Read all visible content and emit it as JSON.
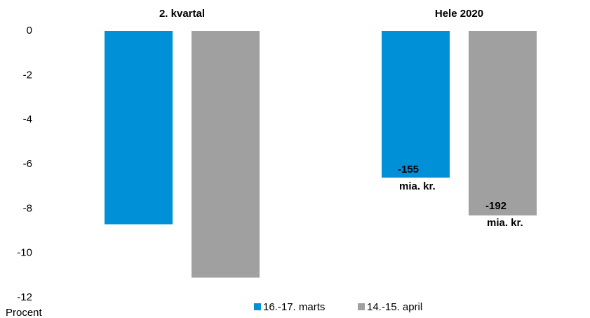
{
  "chart_data": {
    "type": "bar",
    "categories": [
      "2. kvartal",
      "Hele 2020"
    ],
    "series": [
      {
        "name": "16.-17. marts",
        "color": "#0090d8",
        "values": [
          -8.7,
          -6.6
        ]
      },
      {
        "name": "14.-15. april",
        "color": "#a0a0a0",
        "values": [
          -11.1,
          -8.3
        ]
      }
    ],
    "ylim": [
      -12,
      0
    ],
    "yticks": [
      0,
      -2,
      -4,
      -6,
      -8,
      -10,
      -12
    ],
    "y_label": "Procent",
    "grid": false,
    "legend": "bottom",
    "annotations": [
      {
        "lines": [
          "-155",
          "mia. kr."
        ]
      },
      {
        "lines": [
          "-192",
          "mia. kr."
        ]
      }
    ]
  }
}
